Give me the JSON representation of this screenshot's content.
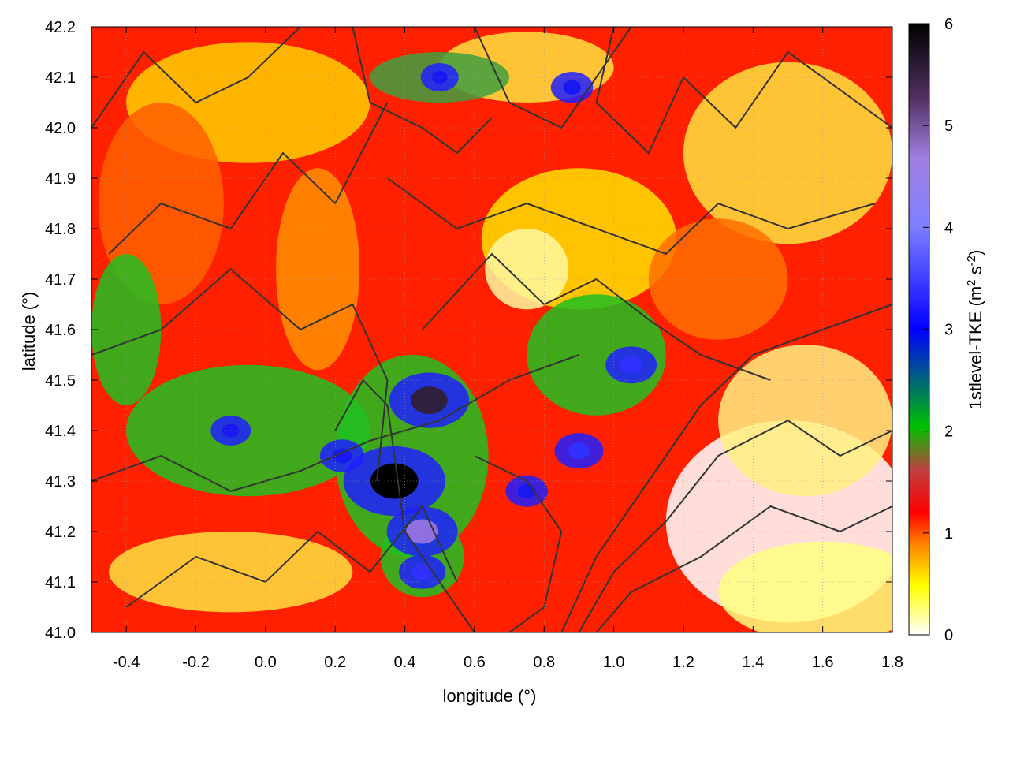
{
  "chart_data": {
    "type": "heatmap",
    "xlabel": "longitude (°)",
    "ylabel": "latitude (°)",
    "colorbar_label_main": "1stlevel-TKE (m",
    "colorbar_label_sup1": "2",
    "colorbar_label_mid": " s",
    "colorbar_label_sup2": "-2",
    "colorbar_label_end": ")",
    "xlim": [
      -0.5,
      1.8
    ],
    "ylim": [
      41.0,
      42.2
    ],
    "zlim": [
      0,
      6
    ],
    "x_ticks": [
      -0.4,
      -0.2,
      0.0,
      0.2,
      0.4,
      0.6,
      0.8,
      1.0,
      1.2,
      1.4,
      1.6,
      1.8
    ],
    "x_tick_labels": [
      "-0.4",
      "-0.2",
      "0.0",
      "0.2",
      "0.4",
      "0.6",
      "0.8",
      "1.0",
      "1.2",
      "1.4",
      "1.6",
      "1.8"
    ],
    "y_ticks": [
      41.0,
      41.1,
      41.2,
      41.3,
      41.4,
      41.5,
      41.6,
      41.7,
      41.8,
      41.9,
      42.0,
      42.1,
      42.2
    ],
    "y_tick_labels": [
      "41.0",
      "41.1",
      "41.2",
      "41.3",
      "41.4",
      "41.5",
      "41.6",
      "41.7",
      "41.8",
      "41.9",
      "42.0",
      "42.1",
      "42.2"
    ],
    "z_ticks": [
      0,
      1,
      2,
      3,
      4,
      5,
      6
    ],
    "z_tick_labels": [
      "0",
      "1",
      "2",
      "3",
      "4",
      "5",
      "6"
    ],
    "grid": true,
    "palette": [
      "#ffffff",
      "#ffff00",
      "#ff8000",
      "#ff0000",
      "#c04040",
      "#00c000",
      "#0000ff",
      "#8080ff",
      "#b090ff",
      "#402050",
      "#000000"
    ],
    "hotspots": [
      {
        "lon": 0.47,
        "lat": 41.46,
        "tke": 4.9
      },
      {
        "lon": 0.37,
        "lat": 41.3,
        "tke": 5.9
      },
      {
        "lon": 0.45,
        "lat": 41.2,
        "tke": 4.5
      },
      {
        "lon": 1.05,
        "lat": 41.53,
        "tke": 3.6
      },
      {
        "lon": -0.1,
        "lat": 41.4,
        "tke": 3.1
      },
      {
        "lon": 0.45,
        "lat": 41.12,
        "tke": 3.4
      },
      {
        "lon": 0.22,
        "lat": 41.35,
        "tke": 3.3
      },
      {
        "lon": 0.75,
        "lat": 41.28,
        "tke": 3.2
      },
      {
        "lon": 0.9,
        "lat": 41.36,
        "tke": 3.5
      },
      {
        "lon": 0.5,
        "lat": 42.1,
        "tke": 3.0
      },
      {
        "lon": 0.88,
        "lat": 42.08,
        "tke": 3.2
      }
    ]
  }
}
